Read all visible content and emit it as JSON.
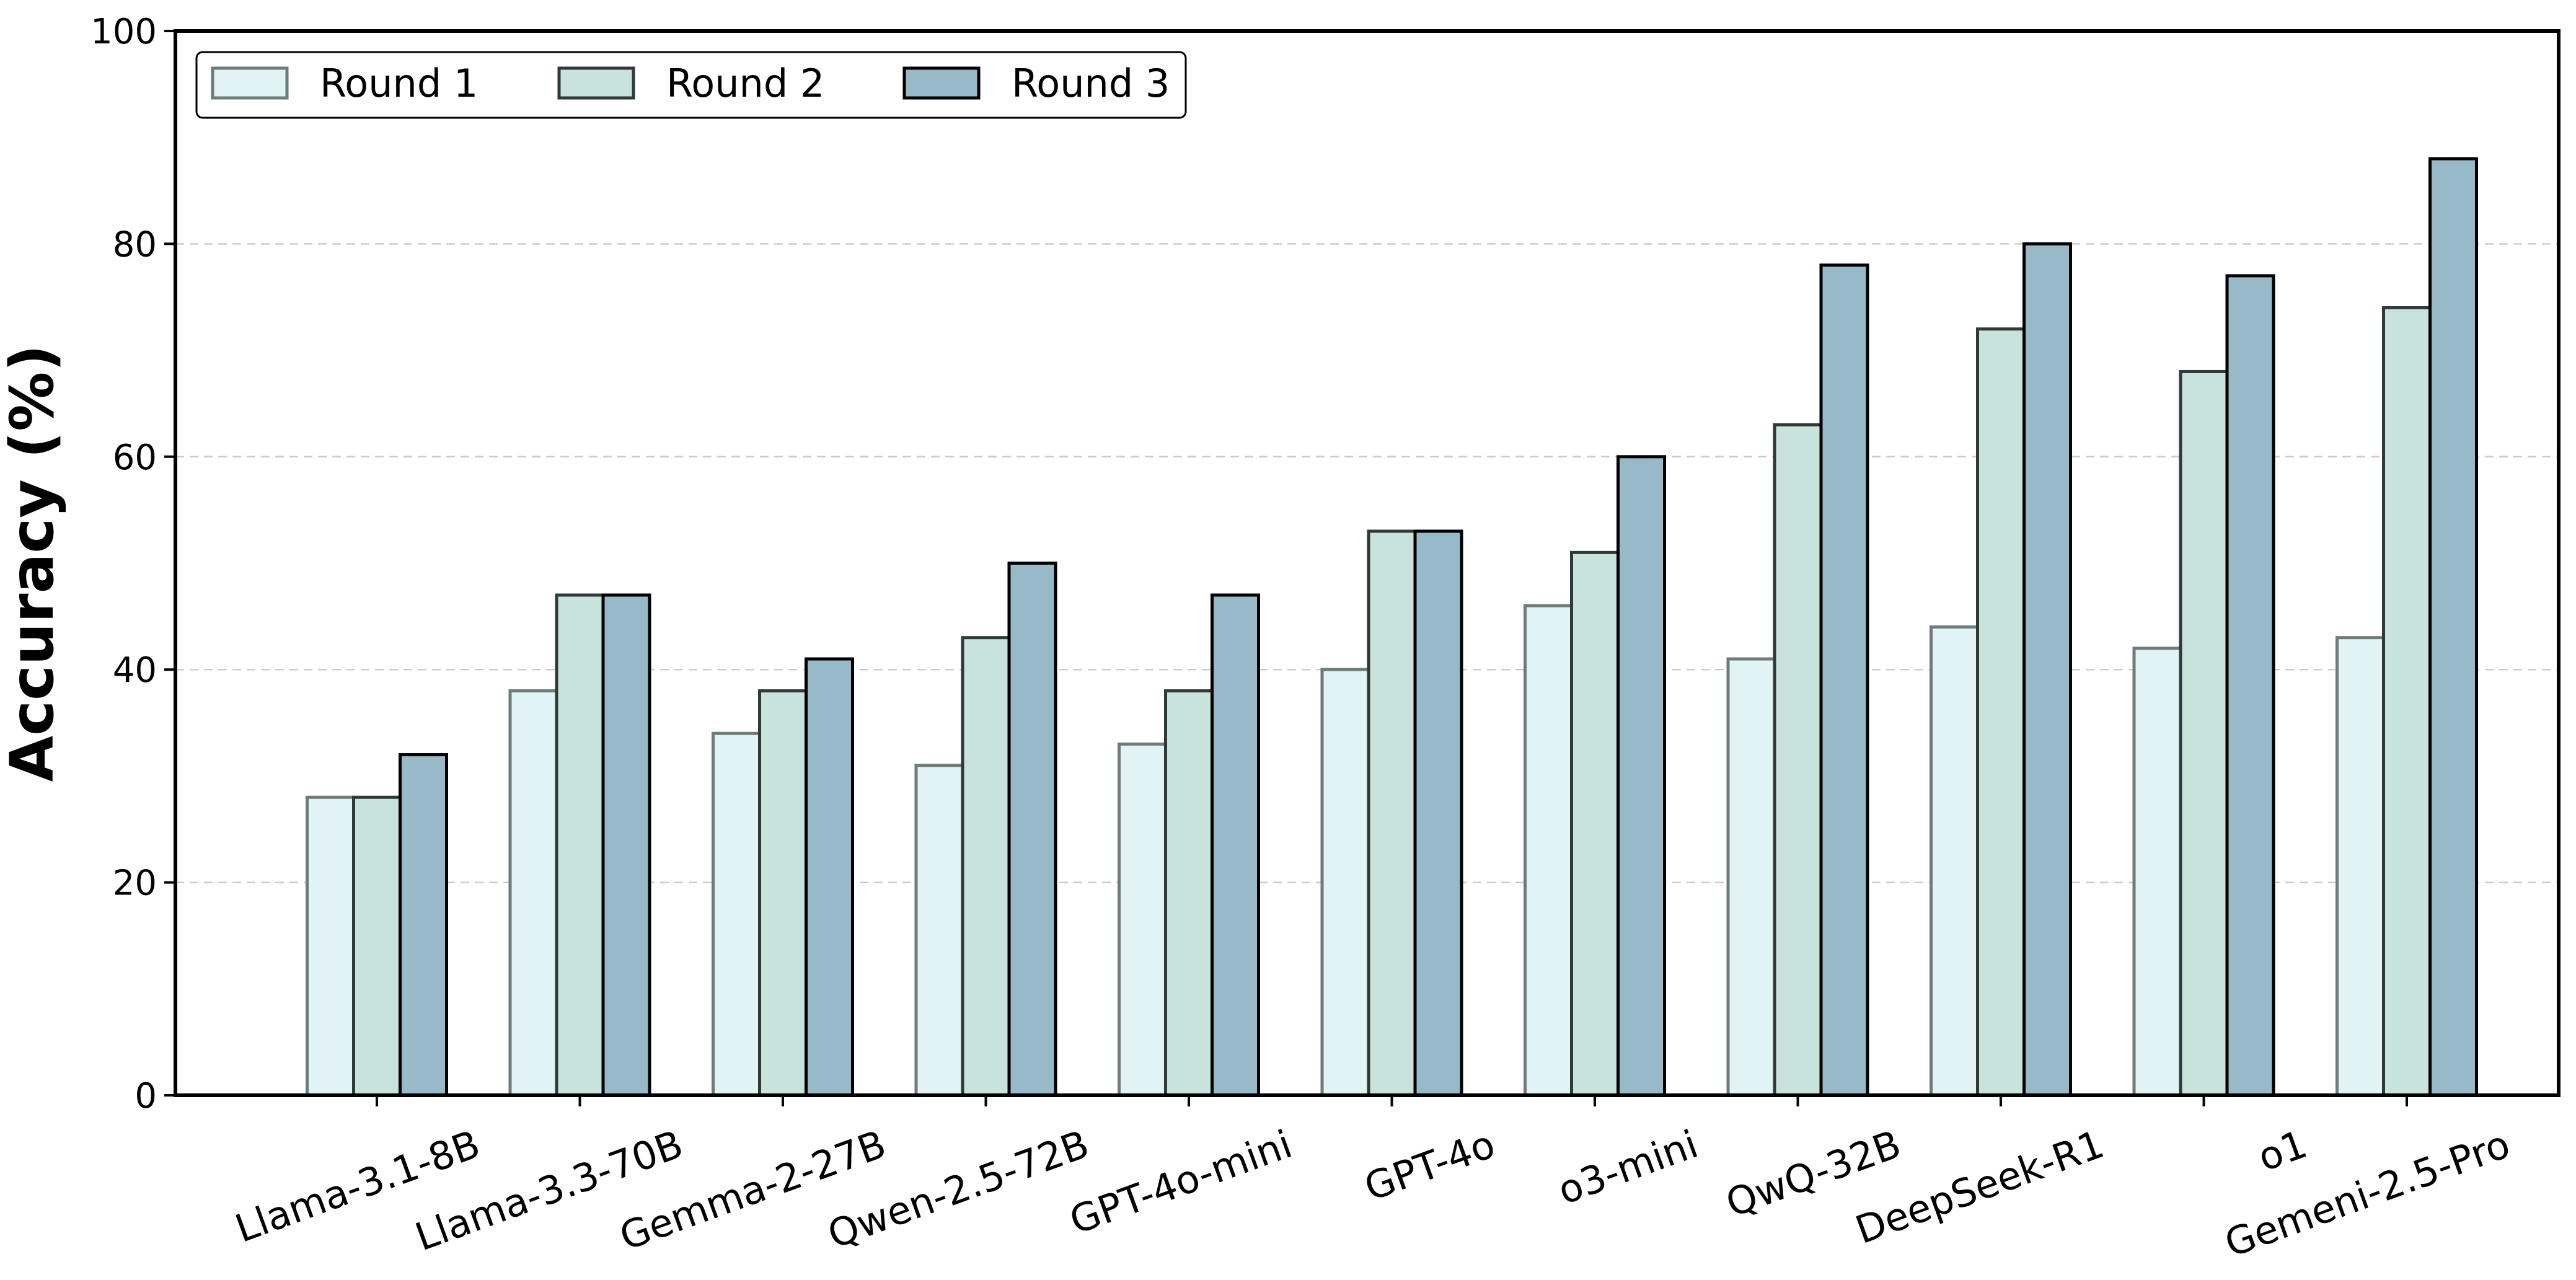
{
  "chart_data": {
    "type": "bar",
    "title": "",
    "xlabel": "",
    "ylabel": "Accuracy (%)",
    "ylim": [
      0,
      100
    ],
    "yticks": [
      "0",
      "20",
      "40",
      "60",
      "80",
      "100"
    ],
    "grid": "y-dashed",
    "legend_position": "top-left",
    "categories": [
      "Llama-3.1-8B",
      "Llama-3.3-70B",
      "Gemma-2-27B",
      "Qwen-2.5-72B",
      "GPT-4o-mini",
      "GPT-4o",
      "o3-mini",
      "QwQ-32B",
      "DeepSeek-R1",
      "o1",
      "Gemeni-2.5-Pro"
    ],
    "series": [
      {
        "name": "Round 1",
        "color": "#e2f3f5",
        "edge": "#6e7b7b",
        "values": [
          28,
          38,
          34,
          31,
          33,
          40,
          46,
          41,
          44,
          42,
          43
        ]
      },
      {
        "name": "Round 2",
        "color": "#c8e2dc",
        "edge": "#2f3a38",
        "values": [
          28,
          47,
          38,
          43,
          38,
          53,
          51,
          63,
          72,
          68,
          74
        ]
      },
      {
        "name": "Round 3",
        "color": "#98b9c8",
        "edge": "#000000",
        "values": [
          32,
          47,
          41,
          50,
          47,
          53,
          60,
          78,
          80,
          77,
          88
        ]
      }
    ]
  }
}
